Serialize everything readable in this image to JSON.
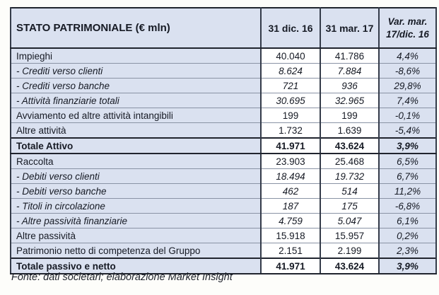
{
  "table": {
    "header": {
      "title": "STATO PATRIMONIALE (€ mln)",
      "col_prev": "31 dic. 16",
      "col_curr": "31 mar. 17",
      "col_var": "Var. mar. 17/dic. 16"
    },
    "rows": [
      {
        "label": "Impieghi",
        "prev": "40.040",
        "curr": "41.786",
        "var": "4,4%",
        "style": "normal"
      },
      {
        "label": "- Crediti verso clienti",
        "prev": "8.624",
        "curr": "7.884",
        "var": "-8,6%",
        "style": "sub"
      },
      {
        "label": "- Crediti verso banche",
        "prev": "721",
        "curr": "936",
        "var": "29,8%",
        "style": "sub"
      },
      {
        "label": "- Attività finanziarie totali",
        "prev": "30.695",
        "curr": "32.965",
        "var": "7,4%",
        "style": "sub"
      },
      {
        "label": "Avviamento ed altre attività intangibili",
        "prev": "199",
        "curr": "199",
        "var": "-0,1%",
        "style": "normal"
      },
      {
        "label": "Altre attività",
        "prev": "1.732",
        "curr": "1.639",
        "var": "-5,4%",
        "style": "normal"
      },
      {
        "label": "Totale Attivo",
        "prev": "41.971",
        "curr": "43.624",
        "var": "3,9%",
        "style": "total"
      },
      {
        "label": "Raccolta",
        "prev": "23.903",
        "curr": "25.468",
        "var": "6,5%",
        "style": "normal"
      },
      {
        "label": "- Debiti verso clienti",
        "prev": "18.494",
        "curr": "19.732",
        "var": "6,7%",
        "style": "sub"
      },
      {
        "label": "- Debiti verso banche",
        "prev": "462",
        "curr": "514",
        "var": "11,2%",
        "style": "sub"
      },
      {
        "label": "- Titoli in circolazione",
        "prev": "187",
        "curr": "175",
        "var": "-6,8%",
        "style": "sub"
      },
      {
        "label": "- Altre passività finanziarie",
        "prev": "4.759",
        "curr": "5.047",
        "var": "6,1%",
        "style": "sub"
      },
      {
        "label": "Altre passività",
        "prev": "15.918",
        "curr": "15.957",
        "var": "0,2%",
        "style": "normal"
      },
      {
        "label": "Patrimonio netto di competenza del Gruppo",
        "prev": "2.151",
        "curr": "2.199",
        "var": "2,3%",
        "style": "normal"
      },
      {
        "label": "Totale passivo e netto",
        "prev": "41.971",
        "curr": "43.624",
        "var": "3,9%",
        "style": "total"
      }
    ]
  },
  "footer": {
    "source_note": "Fonte: dati societari; elaborazione Market Insight"
  },
  "colors": {
    "shaded_bg": "#dae1f0",
    "cell_bg": "#ffffff",
    "border_dark": "#20242e",
    "border_mid": "#343b49",
    "border_light": "#8a93a5",
    "text": "#161a24"
  }
}
